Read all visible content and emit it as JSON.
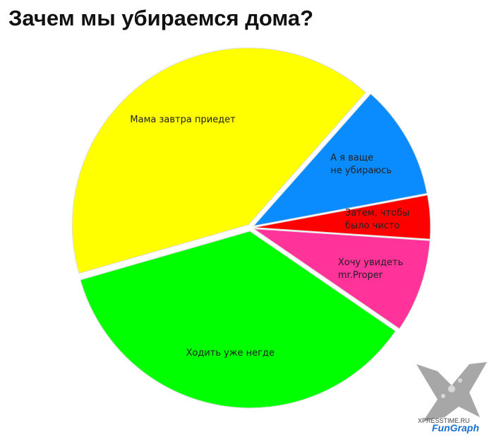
{
  "chart_data": {
    "type": "pie",
    "title": "Зачем мы убираемся дома?",
    "categories": [
      "Мама завтра приедет",
      "А я ваще\nне убираюсь",
      "Затем, чтобы\nбыло чисто",
      "Хочу увидеть\nmr.Proper",
      "Ходить уже негде"
    ],
    "values": [
      41,
      10.5,
      4,
      8.5,
      36
    ],
    "colors": [
      "#ffff00",
      "#0a8cff",
      "#ff0000",
      "#ff3399",
      "#00ff00"
    ]
  },
  "watermark": {
    "site": "XPRESSTIME.RU",
    "brand": "FunGraph"
  }
}
